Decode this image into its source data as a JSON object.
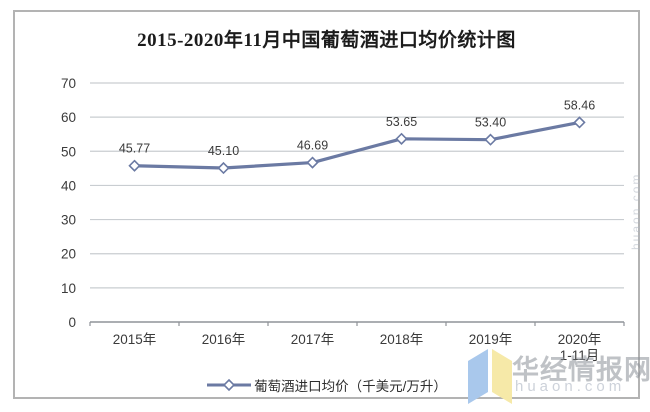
{
  "title": "2015-2020年11月中国葡萄酒进口均价统计图",
  "legend": {
    "label": "葡萄酒进口均价（千美元/万升）"
  },
  "watermark": {
    "brand": "华经情报网",
    "domain": "huaon.com",
    "side_domain": "huaon.com"
  },
  "colors": {
    "line": "#6b7aa3",
    "marker_fill": "#ffffff",
    "grid": "#c9cdd1",
    "axis": "#8f9398",
    "text": "#3b3b3b",
    "logo_blue": "#a9c8ec",
    "logo_yellow": "#f6e9a8"
  },
  "chart_data": {
    "type": "line",
    "title": "2015-2020年11月中国葡萄酒进口均价统计图",
    "categories": [
      "2015年",
      "2016年",
      "2017年",
      "2018年",
      "2019年",
      "2020年"
    ],
    "category_sublabels": [
      "",
      "",
      "",
      "",
      "",
      "1-11月"
    ],
    "values": [
      45.77,
      45.1,
      46.69,
      53.65,
      53.4,
      58.46
    ],
    "data_labels": [
      "45.77",
      "45.10",
      "46.69",
      "53.65",
      "53.40",
      "58.46"
    ],
    "series_name": "葡萄酒进口均价（千美元/万升）",
    "marker": "diamond-open",
    "ylim": [
      0,
      70
    ],
    "ytick_step": 10,
    "yticks": [
      0,
      10,
      20,
      30,
      40,
      50,
      60,
      70
    ],
    "grid": true,
    "legend_position": "bottom",
    "xlabel": "",
    "ylabel": ""
  }
}
